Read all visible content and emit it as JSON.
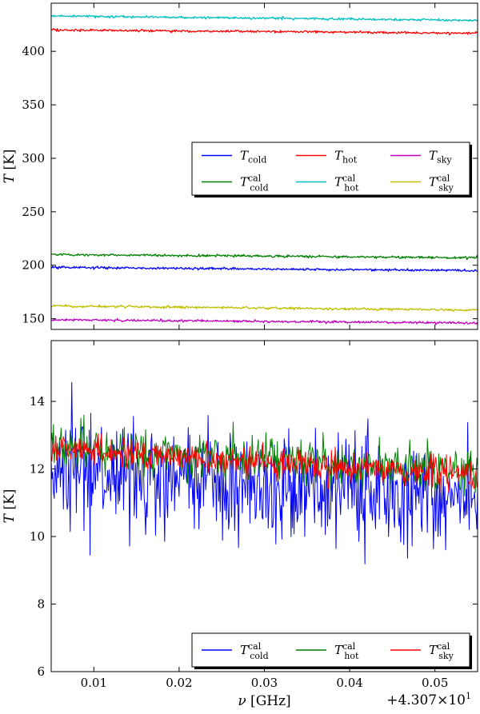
{
  "chart_data": [
    {
      "type": "line",
      "panel": "top",
      "ylabel": "T [K]",
      "xlabel": "",
      "xlim": [
        0.005,
        0.055
      ],
      "ylim": [
        140,
        445
      ],
      "xticks": [
        0.01,
        0.02,
        0.03,
        0.04,
        0.05
      ],
      "yticks": [
        150,
        200,
        250,
        300,
        350,
        400
      ],
      "legend_position": "center-right",
      "legend_ncol": 3,
      "series": [
        {
          "name": "T_cold",
          "label_main": "T",
          "label_sub": "cold",
          "label_sup": "",
          "color": "#0000ff",
          "x": [
            0.005,
            0.055
          ],
          "y": [
            198,
            195
          ],
          "noise": 1.0
        },
        {
          "name": "T_hot",
          "label_main": "T",
          "label_sub": "hot",
          "label_sup": "",
          "color": "#ff0000",
          "x": [
            0.005,
            0.055
          ],
          "y": [
            420,
            417
          ],
          "noise": 1.0
        },
        {
          "name": "T_sky",
          "label_main": "T",
          "label_sub": "sky",
          "label_sup": "",
          "color": "#bf00bf",
          "x": [
            0.005,
            0.055
          ],
          "y": [
            149,
            146
          ],
          "noise": 1.0
        },
        {
          "name": "T_cold^cal",
          "label_main": "T",
          "label_sub": "cold",
          "label_sup": "cal",
          "color": "#008000",
          "x": [
            0.005,
            0.055
          ],
          "y": [
            210,
            207
          ],
          "noise": 1.0
        },
        {
          "name": "T_hot^cal",
          "label_main": "T",
          "label_sub": "hot",
          "label_sup": "cal",
          "color": "#00bfbf",
          "x": [
            0.005,
            0.055
          ],
          "y": [
            433,
            429
          ],
          "noise": 1.0
        },
        {
          "name": "T_sky^cal",
          "label_main": "T",
          "label_sub": "sky",
          "label_sup": "cal",
          "color": "#bfbf00",
          "x": [
            0.005,
            0.055
          ],
          "y": [
            162,
            158
          ],
          "noise": 1.0
        }
      ]
    },
    {
      "type": "line",
      "panel": "bottom",
      "ylabel": "T [K]",
      "xlabel": "ν [GHz]",
      "offset_label": "+4.307×10",
      "offset_exponent": "1",
      "xlim": [
        0.005,
        0.055
      ],
      "ylim": [
        6,
        15.8
      ],
      "xticks": [
        0.01,
        0.02,
        0.03,
        0.04,
        0.05
      ],
      "yticks": [
        6,
        8,
        10,
        12,
        14
      ],
      "legend_position": "lower-right",
      "legend_ncol": 3,
      "series": [
        {
          "name": "T_cold^cal",
          "label_main": "T",
          "label_sub": "cold",
          "label_sup": "cal",
          "color": "#0000ff",
          "x": [
            0.005,
            0.055
          ],
          "y": [
            11.9,
            11.0
          ],
          "noise": 1.4
        },
        {
          "name": "T_hot^cal",
          "label_main": "T",
          "label_sub": "hot",
          "label_sup": "cal",
          "color": "#008000",
          "x": [
            0.005,
            0.055
          ],
          "y": [
            12.7,
            11.9
          ],
          "noise": 0.6
        },
        {
          "name": "T_sky^cal",
          "label_main": "T",
          "label_sub": "sky",
          "label_sup": "cal",
          "color": "#ff0000",
          "x": [
            0.005,
            0.055
          ],
          "y": [
            12.6,
            11.8
          ],
          "noise": 0.4
        }
      ]
    }
  ]
}
